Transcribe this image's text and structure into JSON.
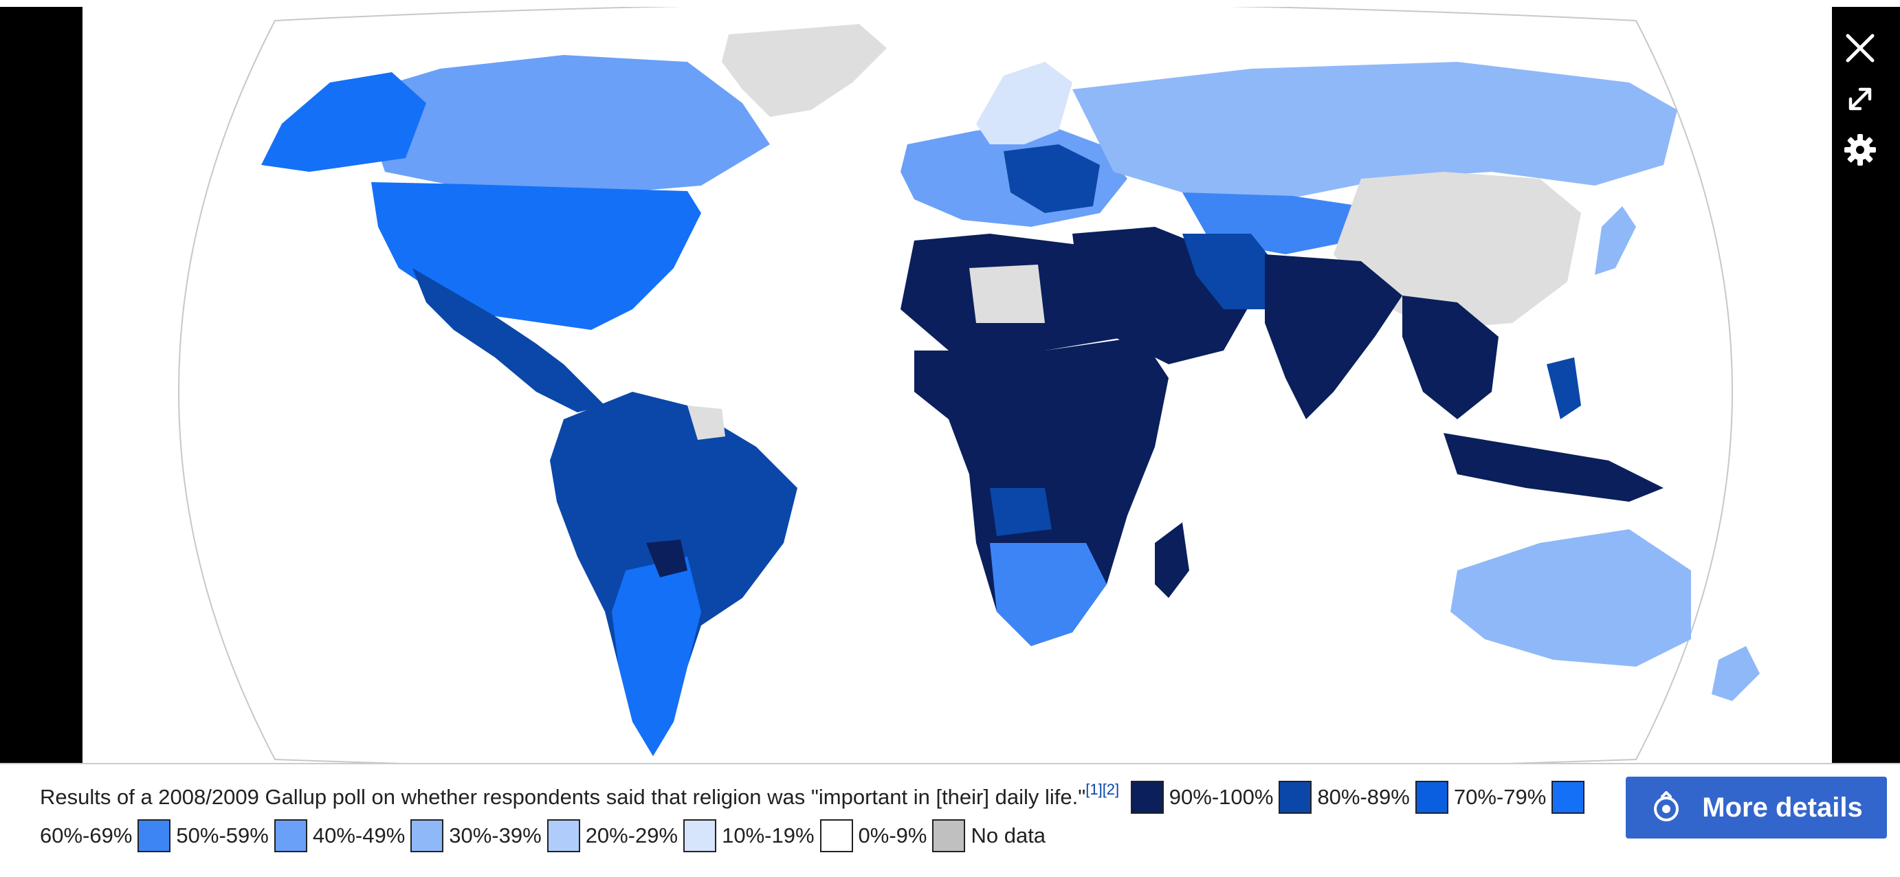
{
  "toolbar": {
    "close_icon": "close-icon",
    "expand_icon": "expand-icon",
    "settings_icon": "gear-icon"
  },
  "caption": {
    "text": "Results of a 2008/2009 Gallup poll on whether respondents said that religion was \"important in [their] daily life.\"",
    "refs": [
      "[1]",
      "[2]"
    ]
  },
  "legend": [
    {
      "label": "90%-100%",
      "color": "#0a1f5c"
    },
    {
      "label": "80%-89%",
      "color": "#0a47a8"
    },
    {
      "label": "70%-79%",
      "color": "#0a5fe0"
    },
    {
      "label": "60%-69%",
      "color": "#1470f7"
    },
    {
      "label": "50%-59%",
      "color": "#3d85f5"
    },
    {
      "label": "40%-49%",
      "color": "#6aa0f7"
    },
    {
      "label": "30%-39%",
      "color": "#8fb8f8"
    },
    {
      "label": "20%-29%",
      "color": "#b0ccfa"
    },
    {
      "label": "10%-19%",
      "color": "#d6e4fc"
    },
    {
      "label": "0%-9%",
      "color": "#ffffff"
    },
    {
      "label": "No data",
      "color": "#c0c0c0"
    }
  ],
  "more_details": {
    "label": "More details",
    "icon": "media-viewer-icon"
  },
  "colors": {
    "ocean": "#ffffff",
    "no_data_land": "#dedede",
    "outline": "#b5b5b5"
  }
}
